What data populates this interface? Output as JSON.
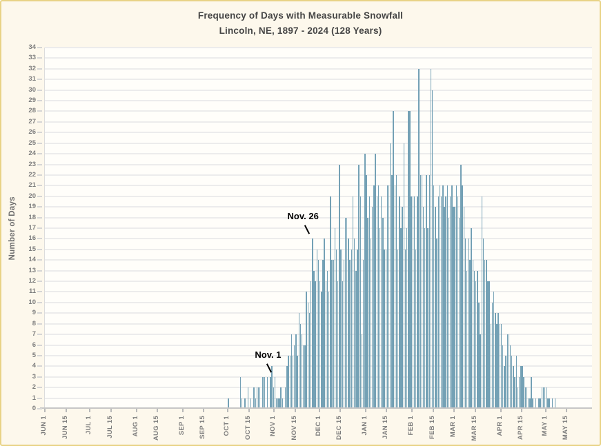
{
  "colors": {
    "bar": "#74a1b5",
    "background": "#fdf8ec",
    "plot_background": "#fffefa",
    "frame_border": "#e8d386",
    "gridline": "#ececec",
    "axis_line": "#c6c6c6",
    "tick_label": "#7d7d7d",
    "title_text": "#454545",
    "annotation_text": "#000000"
  },
  "chart_data": {
    "type": "bar",
    "title": "Frequency of Days with Measurable Snowfall",
    "subtitle": "Lincoln, NE, 1897 - 2024 (128 Years)",
    "ylabel": "Number of Days",
    "xlabel": "",
    "ylim": [
      0,
      34
    ],
    "y_tick_step": 1,
    "grid": "horizontal-only",
    "legend": "none",
    "x_ticks": [
      {
        "label": "JUN 1",
        "day_index": 0
      },
      {
        "label": "JUN 15",
        "day_index": 14
      },
      {
        "label": "JUL 1",
        "day_index": 30
      },
      {
        "label": "JUL 15",
        "day_index": 44
      },
      {
        "label": "AUG 1",
        "day_index": 61
      },
      {
        "label": "AUG 15",
        "day_index": 75
      },
      {
        "label": "SEP 1",
        "day_index": 92
      },
      {
        "label": "SEP 15",
        "day_index": 106
      },
      {
        "label": "OCT 1",
        "day_index": 122
      },
      {
        "label": "OCT 15",
        "day_index": 136
      },
      {
        "label": "NOV 1",
        "day_index": 153
      },
      {
        "label": "NOV 15",
        "day_index": 167
      },
      {
        "label": "DEC 1",
        "day_index": 183
      },
      {
        "label": "DEC 15",
        "day_index": 197
      },
      {
        "label": "JAN 1",
        "day_index": 214
      },
      {
        "label": "JAN 15",
        "day_index": 228
      },
      {
        "label": "FEB 1",
        "day_index": 245
      },
      {
        "label": "FEB 15",
        "day_index": 259
      },
      {
        "label": "MAR 1",
        "day_index": 273
      },
      {
        "label": "MAR 15",
        "day_index": 287
      },
      {
        "label": "APR 1",
        "day_index": 304
      },
      {
        "label": "APR 15",
        "day_index": 318
      },
      {
        "label": "MAY 1",
        "day_index": 334
      },
      {
        "label": "MAY 15",
        "day_index": 348
      }
    ],
    "months": [
      {
        "name": "JUN",
        "values": [
          0,
          0,
          0,
          0,
          0,
          0,
          0,
          0,
          0,
          0,
          0,
          0,
          0,
          0,
          0,
          0,
          0,
          0,
          0,
          0,
          0,
          0,
          0,
          0,
          0,
          0,
          0,
          0,
          0,
          0
        ]
      },
      {
        "name": "JUL",
        "values": [
          0,
          0,
          0,
          0,
          0,
          0,
          0,
          0,
          0,
          0,
          0,
          0,
          0,
          0,
          0,
          0,
          0,
          0,
          0,
          0,
          0,
          0,
          0,
          0,
          0,
          0,
          0,
          0,
          0,
          0,
          0
        ]
      },
      {
        "name": "AUG",
        "values": [
          0,
          0,
          0,
          0,
          0,
          0,
          0,
          0,
          0,
          0,
          0,
          0,
          0,
          0,
          0,
          0,
          0,
          0,
          0,
          0,
          0,
          0,
          0,
          0,
          0,
          0,
          0,
          0,
          0,
          0,
          0
        ]
      },
      {
        "name": "SEP",
        "values": [
          0,
          0,
          0,
          0,
          0,
          0,
          0,
          0,
          0,
          0,
          0,
          0,
          0,
          0,
          0,
          0,
          0,
          0,
          0,
          0,
          0,
          0,
          0,
          0,
          0,
          0,
          0,
          0,
          0,
          0
        ]
      },
      {
        "name": "OCT",
        "values": [
          1,
          0,
          0,
          0,
          0,
          0,
          0,
          0,
          3,
          1,
          0,
          1,
          0,
          2,
          0,
          1,
          0,
          2,
          1,
          2,
          2,
          2,
          0,
          3,
          3,
          0,
          3,
          0,
          3,
          4,
          2
        ]
      },
      {
        "name": "NOV",
        "values": [
          3,
          1,
          1,
          1,
          2,
          1,
          0,
          2,
          4,
          5,
          5,
          7,
          5,
          6,
          7,
          5,
          9,
          8,
          7,
          6,
          6,
          11,
          10,
          9,
          12,
          16,
          13,
          12,
          15,
          14
        ]
      },
      {
        "name": "DEC",
        "values": [
          12,
          11,
          14,
          16,
          12,
          13,
          11,
          20,
          14,
          14,
          17,
          15,
          12,
          23,
          15,
          12,
          14,
          18,
          18,
          16,
          14,
          15,
          20,
          16,
          13,
          15,
          23,
          20,
          7,
          14,
          24
        ]
      },
      {
        "name": "JAN",
        "values": [
          22,
          18,
          20,
          16,
          19,
          21,
          24,
          20,
          21,
          17,
          20,
          18,
          15,
          15,
          21,
          21,
          25,
          22,
          28,
          21,
          22,
          15,
          20,
          17,
          19,
          25,
          15,
          17,
          28,
          28,
          20
        ]
      },
      {
        "name": "FEB",
        "values": [
          20,
          20,
          15,
          20,
          32,
          22,
          22,
          19,
          17,
          22,
          17,
          22,
          32,
          30,
          21,
          19,
          16,
          20,
          21,
          20,
          21,
          19,
          20,
          21,
          18,
          20,
          21,
          19
        ]
      },
      {
        "name": "MAR",
        "values": [
          19,
          21,
          20,
          18,
          23,
          21,
          19,
          16,
          13,
          16,
          14,
          17,
          14,
          13,
          12,
          13,
          10,
          7,
          20,
          16,
          14,
          14,
          12,
          12,
          8,
          10,
          11,
          9,
          8,
          9,
          8
        ]
      },
      {
        "name": "APR",
        "values": [
          8,
          6,
          4,
          5,
          7,
          7,
          6,
          5,
          4,
          3,
          5,
          2,
          3,
          4,
          4,
          3,
          2,
          2,
          1,
          1,
          3,
          1,
          0,
          1,
          0,
          1,
          1,
          2,
          2,
          2
        ]
      },
      {
        "name": "MAY",
        "values": [
          2,
          1,
          1,
          0,
          1,
          0,
          1,
          0,
          0,
          0,
          0,
          0,
          0,
          0,
          0,
          0,
          0,
          0,
          0,
          0,
          0,
          0,
          0,
          0,
          0,
          0,
          0,
          0,
          0,
          0,
          0
        ]
      }
    ],
    "annotations": [
      {
        "label": "Nov. 1",
        "day_index": 153,
        "value": 3
      },
      {
        "label": "Nov. 26",
        "day_index": 178,
        "value": 16
      }
    ]
  }
}
